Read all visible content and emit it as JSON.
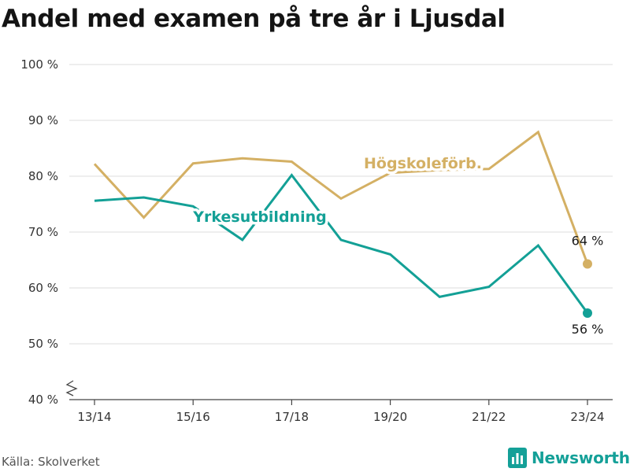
{
  "page": {
    "title": "Andel med examen på tre år i Ljusdal",
    "source": "Källa: Skolverket",
    "brand": "Newsworthy"
  },
  "colors": {
    "hogskole": "#d4b064",
    "yrkes": "#13a096",
    "grid": "#dddddd",
    "axis": "#444444",
    "brand": "#14a098"
  },
  "chart_data": {
    "type": "line",
    "title": "Andel med examen på tre år i Ljusdal",
    "xlabel": "",
    "ylabel": "",
    "x": [
      "13/14",
      "14/15",
      "15/16",
      "16/17",
      "17/18",
      "18/19",
      "19/20",
      "20/21",
      "21/22",
      "22/23",
      "23/24"
    ],
    "x_tick_labels": [
      "13/14",
      "15/16",
      "17/18",
      "19/20",
      "21/22",
      "23/24"
    ],
    "ylim": [
      40,
      100
    ],
    "y_ticks": [
      40,
      50,
      60,
      70,
      80,
      90,
      100
    ],
    "y_tick_labels": [
      "40 %",
      "50 %",
      "60 %",
      "70 %",
      "80 %",
      "90 %",
      "100 %"
    ],
    "grid": true,
    "axis_break": true,
    "series": [
      {
        "name": "Högskoleförb.",
        "color": "#d4b064",
        "values": [
          82.2,
          72.6,
          82.3,
          83.2,
          82.6,
          76.0,
          80.6,
          81.1,
          81.3,
          87.9,
          64.3
        ],
        "end_label": "64 %"
      },
      {
        "name": "Yrkesutbildning",
        "color": "#13a096",
        "values": [
          75.6,
          76.2,
          74.6,
          68.6,
          80.2,
          68.6,
          66.0,
          58.4,
          60.2,
          67.6,
          55.5
        ],
        "end_label": "56 %"
      }
    ]
  }
}
